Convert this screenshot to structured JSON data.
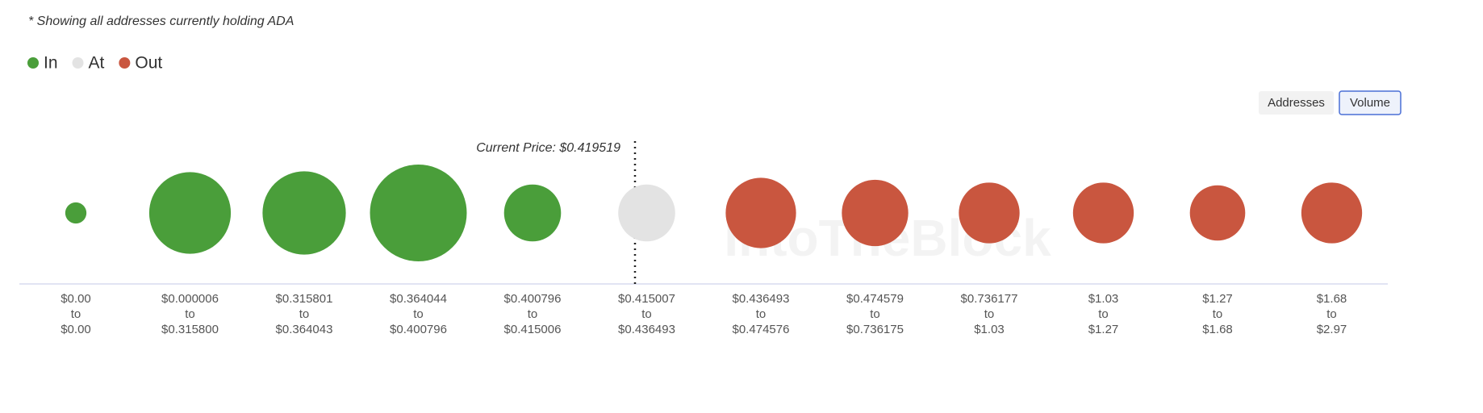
{
  "chart_data": {
    "type": "bubble",
    "note": "* Showing all addresses currently holding ADA",
    "buttons": [
      "Addresses",
      "Volume"
    ],
    "active_button": 1,
    "annotation": "Current Price: $0.419519",
    "watermark": "IntoTheBlock",
    "range_separator": "to",
    "categories": [
      {
        "from": "$0.00",
        "to": "$0.00"
      },
      {
        "from": "$0.000006",
        "to": "$0.315800"
      },
      {
        "from": "$0.315801",
        "to": "$0.364043"
      },
      {
        "from": "$0.364044",
        "to": "$0.400796"
      },
      {
        "from": "$0.400796",
        "to": "$0.415006"
      },
      {
        "from": "$0.415007",
        "to": "$0.436493"
      },
      {
        "from": "$0.436493",
        "to": "$0.474576"
      },
      {
        "from": "$0.474579",
        "to": "$0.736175"
      },
      {
        "from": "$0.736177",
        "to": "$1.03"
      },
      {
        "from": "$1.03",
        "to": "$1.27"
      },
      {
        "from": "$1.27",
        "to": "$1.68"
      },
      {
        "from": "$1.68",
        "to": "$2.97"
      }
    ],
    "series": [
      {
        "name": "In",
        "color": "#4a9e3a",
        "values": [
          0.5,
          7.4,
          7.7,
          10.4,
          3.6,
          null,
          null,
          null,
          null,
          null,
          null,
          null
        ]
      },
      {
        "name": "At",
        "color": "#e3e3e3",
        "values": [
          null,
          null,
          null,
          null,
          null,
          3.6,
          null,
          null,
          null,
          null,
          null,
          null
        ]
      },
      {
        "name": "Out",
        "color": "#c9563f",
        "values": [
          null,
          null,
          null,
          null,
          null,
          null,
          5.5,
          4.9,
          4.1,
          4.1,
          3.4,
          4.1
        ]
      }
    ]
  }
}
